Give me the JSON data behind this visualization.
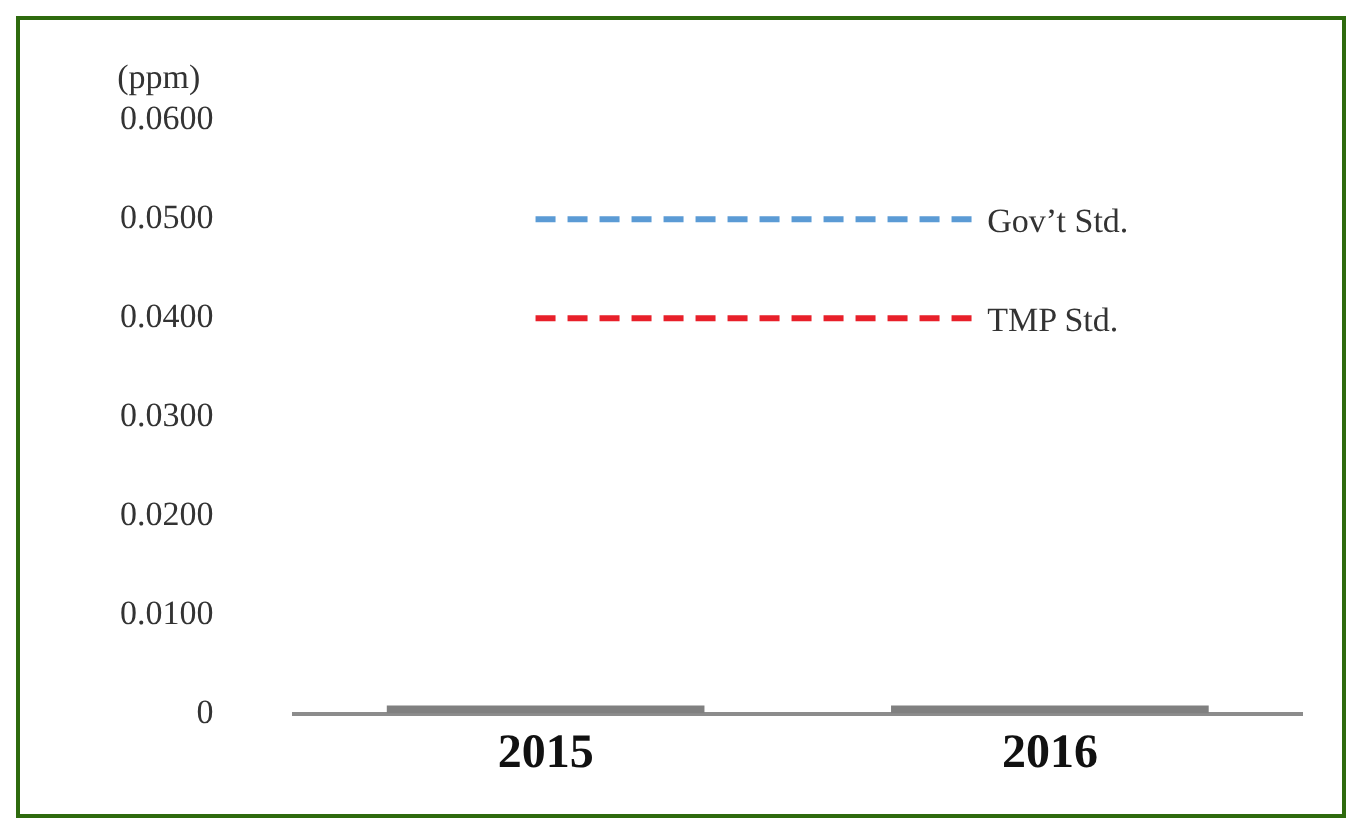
{
  "chart_data": {
    "type": "bar",
    "ylabel": "(ppm)",
    "categories": [
      "2015",
      "2016"
    ],
    "values": [
      0,
      0
    ],
    "color": "#808080",
    "ylim": [
      0,
      0.06
    ],
    "yticks": [
      0,
      {
        "value": 0.01,
        "label": "0.0100"
      },
      {
        "value": 0.02,
        "label": "0.0200"
      },
      {
        "value": 0.03,
        "label": "0.0300"
      },
      {
        "value": 0.04,
        "label": "0.0400"
      },
      {
        "value": 0.05,
        "label": "0.0500"
      },
      {
        "value": 0.06,
        "label": "0.0600"
      }
    ],
    "ref_lines": [
      {
        "axis": "y",
        "value": 0.05,
        "label": "Gov’t Std.",
        "color": "#5b9bd5",
        "line_style": "dashed"
      },
      {
        "axis": "y",
        "value": 0.04,
        "label": "TMP Std.",
        "color": "#e8202a",
        "line_style": "dashed"
      }
    ],
    "grid": false,
    "legend": false
  }
}
